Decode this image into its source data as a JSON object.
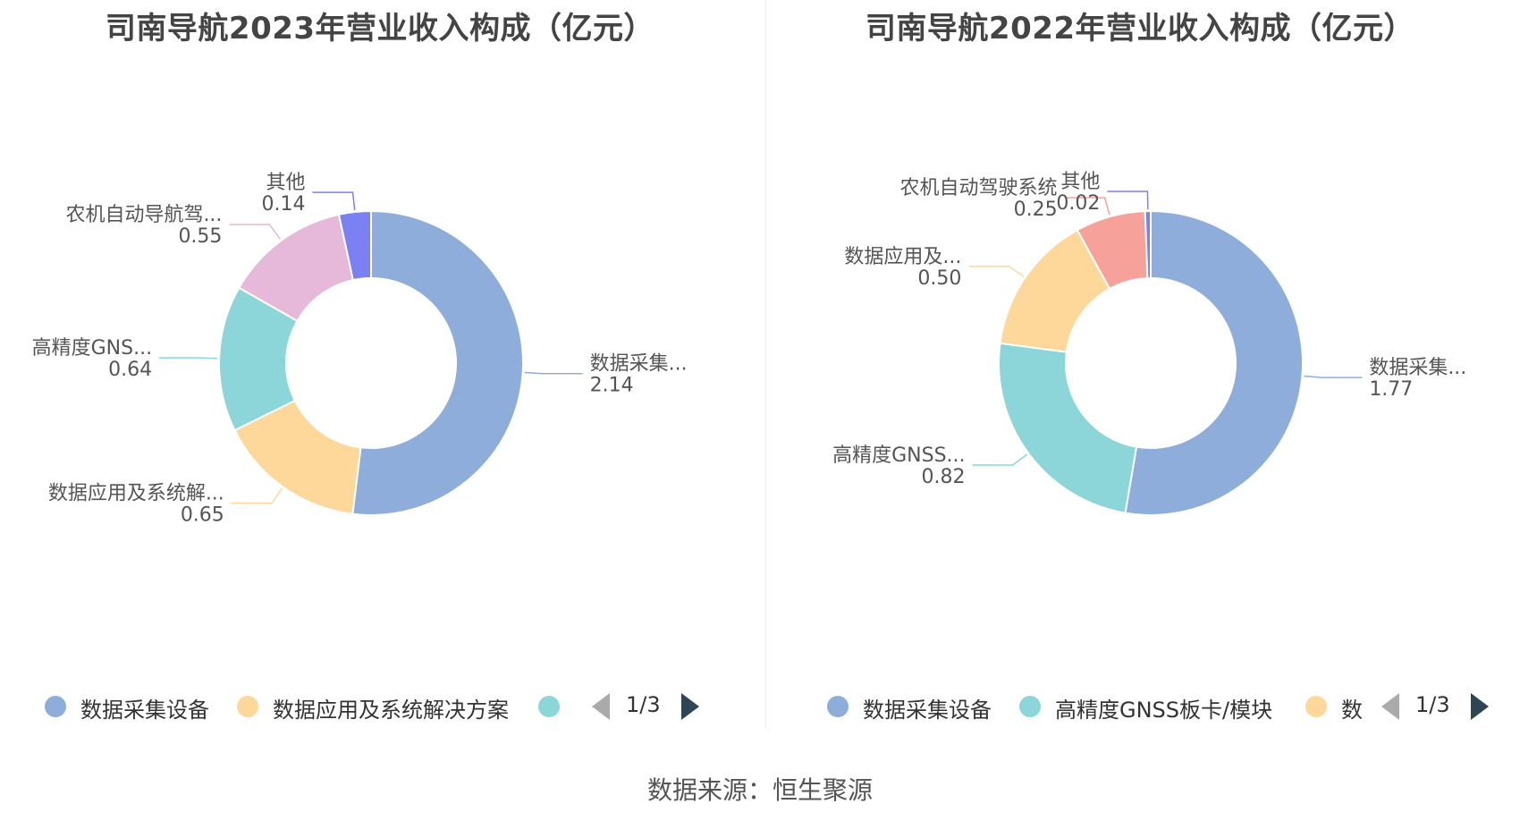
{
  "chart_data": [
    {
      "type": "pie",
      "title": "司南导航2023年营业收入构成（亿元）",
      "slices": [
        {
          "label": "数据采集设备",
          "short_label": "数据采集...",
          "value": 2.14,
          "value_label": "2.14",
          "color": "#8eaddb"
        },
        {
          "label": "数据应用及系统解决方案",
          "short_label": "数据应用及系统解...",
          "value": 0.65,
          "value_label": "0.65",
          "color": "#fdd89a"
        },
        {
          "label": "高精度GNSS板卡/模块",
          "short_label": "高精度GNS...",
          "value": 0.64,
          "value_label": "0.64",
          "color": "#8cd5d8"
        },
        {
          "label": "农机自动导航驾驶系统",
          "short_label": "农机自动导航驾...",
          "value": 0.55,
          "value_label": "0.55",
          "color": "#e6b8da"
        },
        {
          "label": "其他",
          "short_label": "其他",
          "value": 0.14,
          "value_label": "0.14",
          "color": "#7b80f2"
        }
      ],
      "legend": {
        "items": [
          {
            "text": "数据采集设备",
            "color": "#8eaddb"
          },
          {
            "text": "数据应用及系统解决方案",
            "color": "#fdd89a"
          },
          {
            "text": "",
            "color": "#8cd5d8"
          }
        ],
        "page": "1/3"
      }
    },
    {
      "type": "pie",
      "title": "司南导航2022年营业收入构成（亿元）",
      "slices": [
        {
          "label": "数据采集设备",
          "short_label": "数据采集...",
          "value": 1.77,
          "value_label": "1.77",
          "color": "#8eaddb"
        },
        {
          "label": "高精度GNSS板卡/模块",
          "short_label": "高精度GNSS...",
          "value": 0.82,
          "value_label": "0.82",
          "color": "#8cd5d8"
        },
        {
          "label": "数据应用及系统解决方案",
          "short_label": "数据应用及...",
          "value": 0.5,
          "value_label": "0.50",
          "color": "#fdd89a"
        },
        {
          "label": "农机自动驾驶系统",
          "short_label": "农机自动驾驶系统",
          "value": 0.25,
          "value_label": "0.25",
          "color": "#f7a19b"
        },
        {
          "label": "其他",
          "short_label": "其他",
          "value": 0.02,
          "value_label": "0.02",
          "color": "#7b80f2"
        }
      ],
      "legend": {
        "items": [
          {
            "text": "数据采集设备",
            "color": "#8eaddb"
          },
          {
            "text": "高精度GNSS板卡/模块",
            "color": "#8cd5d8"
          },
          {
            "text": "数",
            "color": "#fdd89a"
          }
        ],
        "page": "1/3"
      }
    }
  ],
  "source": "数据来源：恒生聚源"
}
